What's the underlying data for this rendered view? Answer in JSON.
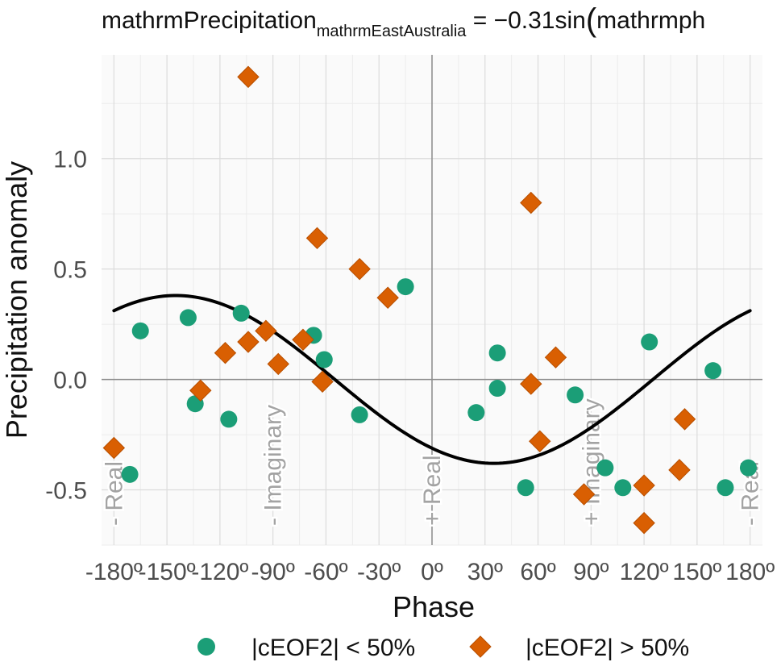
{
  "chart_data": {
    "type": "scatter",
    "title": {
      "main": "mathrmPrecipitation",
      "subscript": "mathrmEastAustralia",
      "rest": " = −0.31sin",
      "paren": "(",
      "tail": "mathrmph"
    },
    "xlabel": "Phase",
    "ylabel": "Precipitation anomaly",
    "xlim": [
      -187,
      187
    ],
    "ylim": [
      -0.75,
      1.47
    ],
    "x_ticks": [
      -180,
      -150,
      -120,
      -90,
      -60,
      -30,
      0,
      30,
      60,
      90,
      120,
      150,
      180
    ],
    "x_tick_labels": [
      "-180º",
      "-150º",
      "-120º",
      "-90º",
      "-60º",
      "-30º",
      "0º",
      "30º",
      "60º",
      "90º",
      "120º",
      "150º",
      "180º"
    ],
    "y_ticks": [
      -0.5,
      0.0,
      0.5,
      1.0
    ],
    "y_tick_labels": [
      "-0.5",
      "0.0",
      "0.5",
      "1.0"
    ],
    "grid": true,
    "legend_position": "bottom",
    "phase_labels": [
      {
        "x": -180,
        "text": "- Real"
      },
      {
        "x": -90,
        "text": "- Imaginary"
      },
      {
        "x": 0,
        "text": "+ Real"
      },
      {
        "x": 90,
        "text": "+ Imaginary"
      },
      {
        "x": 180,
        "text": "- Real"
      }
    ],
    "series": [
      {
        "name": "|cEOF2| < 50%",
        "marker": "circle",
        "color": "#1B9E77",
        "points": [
          [
            -171,
            -0.43
          ],
          [
            -165,
            0.22
          ],
          [
            -138,
            0.28
          ],
          [
            -134,
            -0.11
          ],
          [
            -115,
            -0.18
          ],
          [
            -108,
            0.3
          ],
          [
            -67,
            0.2
          ],
          [
            -61,
            0.09
          ],
          [
            -41,
            -0.16
          ],
          [
            -15,
            0.42
          ],
          [
            25,
            -0.15
          ],
          [
            37,
            0.12
          ],
          [
            37,
            -0.04
          ],
          [
            53,
            -0.49
          ],
          [
            81,
            -0.07
          ],
          [
            98,
            -0.4
          ],
          [
            108,
            -0.49
          ],
          [
            123,
            0.17
          ],
          [
            159,
            0.04
          ],
          [
            166,
            -0.49
          ],
          [
            179,
            -0.4
          ]
        ]
      },
      {
        "name": "|cEOF2| > 50%",
        "marker": "diamond",
        "color": "#D95F02",
        "points": [
          [
            -180,
            -0.31
          ],
          [
            -131,
            -0.05
          ],
          [
            -117,
            0.12
          ],
          [
            -104,
            1.37
          ],
          [
            -104,
            0.17
          ],
          [
            -94,
            0.22
          ],
          [
            -87,
            0.07
          ],
          [
            -73,
            0.18
          ],
          [
            -65,
            0.64
          ],
          [
            -62,
            -0.01
          ],
          [
            -41,
            0.5
          ],
          [
            -25,
            0.37
          ],
          [
            56,
            0.8
          ],
          [
            56,
            -0.02
          ],
          [
            61,
            -0.28
          ],
          [
            70,
            0.1
          ],
          [
            86,
            -0.52
          ],
          [
            120,
            -0.48
          ],
          [
            120,
            -0.65
          ],
          [
            140,
            -0.41
          ],
          [
            143,
            -0.18
          ]
        ]
      }
    ],
    "fit_curve": {
      "amplitude": 0.38,
      "phase_shift_deg": 125,
      "x_range": [
        -180,
        180
      ],
      "color": "#000000"
    }
  }
}
